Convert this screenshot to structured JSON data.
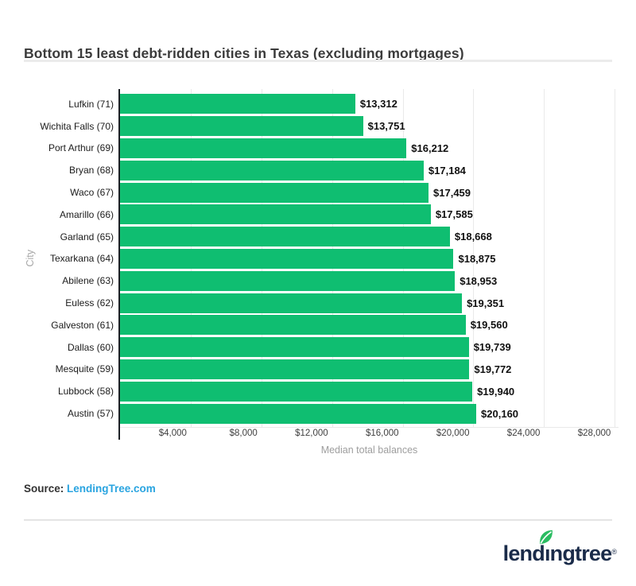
{
  "chart_data": {
    "type": "bar",
    "orientation": "horizontal",
    "title": "Bottom 15 least debt-ridden cities in Texas (excluding mortgages)",
    "categories": [
      "Lufkin (71)",
      "Wichita Falls (70)",
      "Port Arthur (69)",
      "Bryan (68)",
      "Waco (67)",
      "Amarillo (66)",
      "Garland (65)",
      "Texarkana (64)",
      "Abilene (63)",
      "Euless (62)",
      "Galveston (61)",
      "Dallas (60)",
      "Mesquite (59)",
      "Lubbock (58)",
      "Austin (57)"
    ],
    "values": [
      13312,
      13751,
      16212,
      17184,
      17459,
      17585,
      18668,
      18875,
      18953,
      19351,
      19560,
      19739,
      19772,
      19940,
      20160
    ],
    "value_labels": [
      "$13,312",
      "$13,751",
      "$16,212",
      "$17,184",
      "$17,459",
      "$17,585",
      "$18,668",
      "$18,875",
      "$18,953",
      "$19,351",
      "$19,560",
      "$19,739",
      "$19,772",
      "$19,940",
      "$20,160"
    ],
    "xlabel": "Median total balances",
    "ylabel": "City",
    "xlim": [
      0,
      28212
    ],
    "xticks": [
      4000,
      8000,
      12000,
      16000,
      20000,
      24000,
      28000
    ],
    "xtick_labels": [
      "$4,000",
      "$8,000",
      "$12,000",
      "$16,000",
      "$20,000",
      "$24,000",
      "$28,000"
    ],
    "grid": true,
    "legend": "none",
    "bar_color": "#0fbe71"
  },
  "source": {
    "label": "Source:",
    "link_text": "LendingTree.com"
  },
  "footer": {
    "logo": {
      "left": "lend",
      "i": "ı",
      "right": "ngtree",
      "registered": "®"
    }
  },
  "colors": {
    "bar": "#0fbe71",
    "grid": "#e9e9e9",
    "link": "#29a4e0",
    "navy": "#1a2b49",
    "leaf": "#2abc61"
  }
}
